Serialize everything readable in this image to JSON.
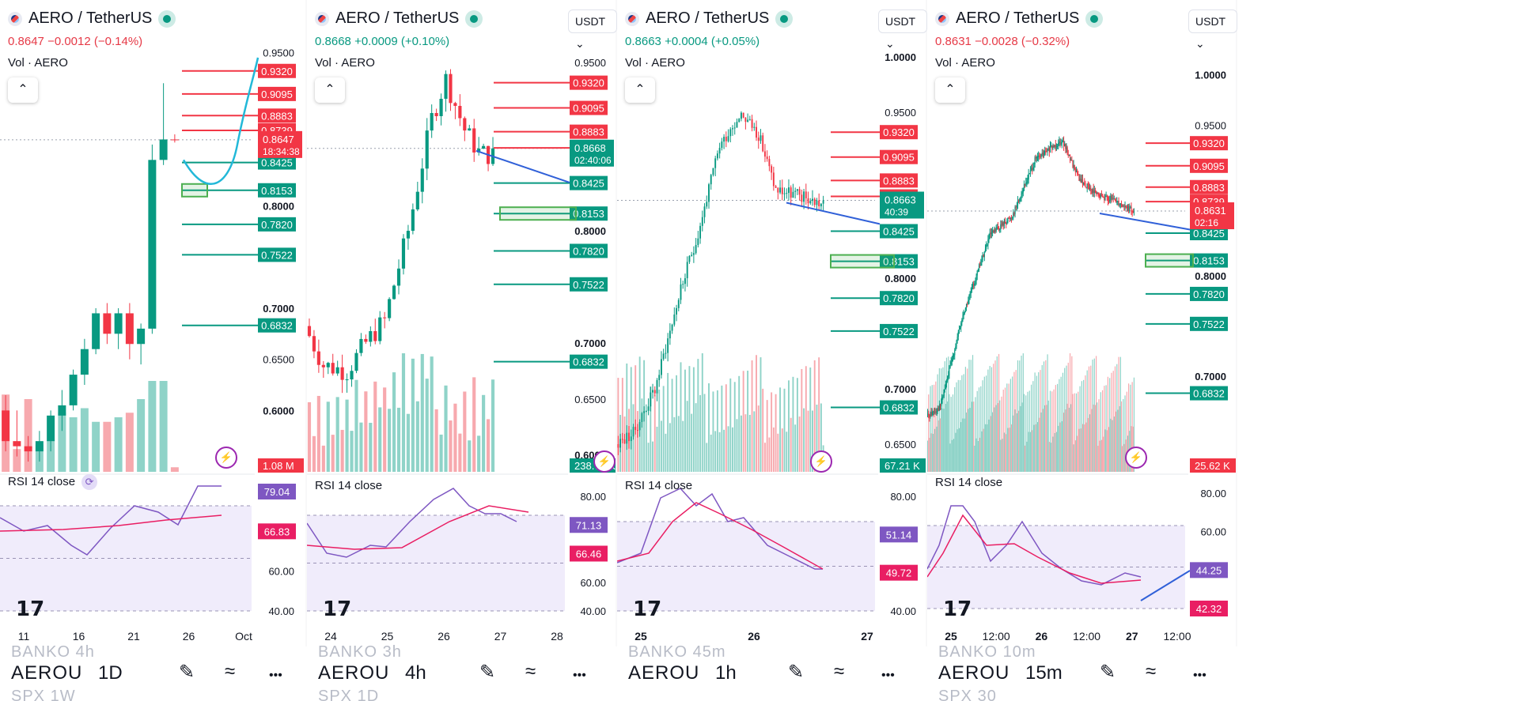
{
  "panels": [
    {
      "key": "p1",
      "title": "AERO / TetherUS",
      "price": "0.8647",
      "change": "−0.0012 (−0.14%)",
      "direction": "down",
      "vol_label": "Vol · AERO",
      "rsi_label": "RSI 14 close",
      "show_usdt": false,
      "symbol": "AEROU",
      "timeframe": "1D",
      "ghost_above": "BANKO 4h",
      "ghost_below": "SPX 1W"
    },
    {
      "key": "p2",
      "title": "AERO / TetherUS",
      "price": "0.8668",
      "change": "+0.0009 (+0.10%)",
      "direction": "up",
      "vol_label": "Vol · AERO",
      "rsi_label": "RSI 14 close",
      "show_usdt": true,
      "usdt": "USDT",
      "symbol": "AEROU",
      "timeframe": "4h",
      "ghost_above": "BANKO 3h",
      "ghost_below": "SPX 1D"
    },
    {
      "key": "p3",
      "title": "AERO / TetherUS",
      "price": "0.8663",
      "change": "+0.0004 (+0.05%)",
      "direction": "up",
      "vol_label": "Vol · AERO",
      "rsi_label": "RSI 14 close",
      "show_usdt": true,
      "usdt": "USDT",
      "symbol": "AEROU",
      "timeframe": "1h",
      "ghost_above": "BANKO 45m",
      "ghost_below": ""
    },
    {
      "key": "p4",
      "title": "AERO / TetherUS",
      "price": "0.8631",
      "change": "−0.0028 (−0.32%)",
      "direction": "down",
      "vol_label": "Vol · AERO",
      "rsi_label": "RSI 14 close",
      "show_usdt": true,
      "usdt": "USDT",
      "symbol": "AEROU",
      "timeframe": "15m",
      "ghost_above": "BANKO 10m",
      "ghost_below": "SPX 30"
    }
  ],
  "chart_data": [
    {
      "type": "candlestick",
      "panel": "p1",
      "title": "AERO / TetherUS",
      "timeframe": "1D",
      "x_ticks": [
        "11",
        "16",
        "21",
        "26",
        "Oct"
      ],
      "y_ticks": [
        "0.9500",
        "0.8000",
        "0.7000",
        "0.6500",
        "0.6000"
      ],
      "y_range": [
        0.54,
        0.955
      ],
      "resistance_levels": [
        0.932,
        0.9095,
        0.8883,
        0.8739
      ],
      "support_levels": [
        0.8425,
        0.8153,
        0.782,
        0.7522,
        0.6832
      ],
      "last_price": {
        "value": "0.8647",
        "countdown": "18:34:38"
      },
      "volume_label": "1.08 M",
      "candles": [
        [
          0.6,
          0.615,
          0.56,
          0.57
        ],
        [
          0.57,
          0.6,
          0.555,
          0.565
        ],
        [
          0.565,
          0.575,
          0.55,
          0.56
        ],
        [
          0.56,
          0.58,
          0.55,
          0.57
        ],
        [
          0.57,
          0.6,
          0.56,
          0.595
        ],
        [
          0.595,
          0.62,
          0.58,
          0.605
        ],
        [
          0.605,
          0.64,
          0.6,
          0.635
        ],
        [
          0.635,
          0.67,
          0.625,
          0.66
        ],
        [
          0.66,
          0.7,
          0.655,
          0.695
        ],
        [
          0.695,
          0.705,
          0.665,
          0.675
        ],
        [
          0.675,
          0.7,
          0.66,
          0.695
        ],
        [
          0.695,
          0.705,
          0.65,
          0.665
        ],
        [
          0.665,
          0.685,
          0.645,
          0.68
        ],
        [
          0.68,
          0.86,
          0.675,
          0.845
        ],
        [
          0.845,
          0.92,
          0.84,
          0.865
        ],
        [
          0.865,
          0.87,
          0.862,
          0.8647
        ]
      ],
      "volumes": [
        0.85,
        0.25,
        0.8,
        0.3,
        0.35,
        0.65,
        0.6,
        0.7,
        0.55,
        0.55,
        0.6,
        0.65,
        0.8,
        1.0,
        1.0,
        0.05
      ],
      "rsi_ticks": [
        "79.04",
        "66.83",
        "60.00",
        "40.00"
      ],
      "rsi_labels": {
        "rsi": "79.04",
        "ma": "66.83"
      }
    },
    {
      "type": "candlestick",
      "panel": "p2",
      "title": "AERO / TetherUS",
      "timeframe": "4h",
      "x_ticks": [
        "24",
        "25",
        "26",
        "27",
        "28"
      ],
      "y_ticks": [
        "0.9500",
        "0.8000",
        "0.7000",
        "0.6500",
        "0.6000"
      ],
      "y_range": [
        0.585,
        0.955
      ],
      "resistance_levels": [
        0.932,
        0.9095,
        0.8883,
        0.8739
      ],
      "support_levels": [
        0.8425,
        0.8153,
        0.782,
        0.7522,
        0.6832
      ],
      "last_price": {
        "value": "0.8668",
        "countdown": "02:40:06"
      },
      "volume_label": "238.73 K",
      "rsi_ticks": [
        "80.00",
        "71.13",
        "66.46",
        "60.00",
        "40.00"
      ],
      "rsi_labels": {
        "rsi": "71.13",
        "ma": "66.46"
      }
    },
    {
      "type": "candlestick",
      "panel": "p3",
      "title": "AERO / TetherUS",
      "timeframe": "1h",
      "x_ticks": [
        "25",
        "26",
        "27"
      ],
      "y_ticks": [
        "1.0000",
        "0.9500",
        "0.8000",
        "0.7000",
        "0.6500"
      ],
      "y_range": [
        0.625,
        1.0
      ],
      "resistance_levels": [
        0.932,
        0.9095,
        0.8883,
        0.8739
      ],
      "support_levels": [
        0.8425,
        0.8153,
        0.782,
        0.7522,
        0.6832
      ],
      "last_price": {
        "value": "0.8663",
        "countdown": "40:39"
      },
      "volume_label": "67.21 K",
      "rsi_ticks": [
        "80.00",
        "51.14",
        "49.72",
        "40.00"
      ],
      "rsi_labels": {
        "rsi": "51.14",
        "ma": "49.72"
      }
    },
    {
      "type": "candlestick",
      "panel": "p4",
      "title": "AERO / TetherUS",
      "timeframe": "15m",
      "x_ticks": [
        "25",
        "12:00",
        "26",
        "12:00",
        "27",
        "12:00"
      ],
      "y_ticks": [
        "1.0000",
        "0.9500",
        "0.8000",
        "0.7000"
      ],
      "y_range": [
        0.605,
        1.01
      ],
      "resistance_levels": [
        0.932,
        0.9095,
        0.8883,
        0.8739
      ],
      "support_levels": [
        0.8425,
        0.8153,
        0.782,
        0.7522,
        0.6832
      ],
      "last_price": {
        "value": "0.8631",
        "countdown": "02:16"
      },
      "volume_label": "25.62 K",
      "rsi_ticks": [
        "80.00",
        "60.00",
        "44.25",
        "42.32"
      ],
      "rsi_labels": {
        "rsi": "44.25",
        "ma": "42.32"
      }
    }
  ],
  "colors": {
    "up": "#089981",
    "down": "#f23645",
    "rsi": "#7e57c2",
    "rsi_ma": "#e91e63",
    "trend": "#3060d8",
    "path": "#22b8d8"
  },
  "icons": [
    "pencil-icon",
    "trend-lines-icon",
    "more-icon",
    "undo-icon",
    "lightning-icon",
    "collapse-chevron-icon",
    "tradingview-logo"
  ]
}
